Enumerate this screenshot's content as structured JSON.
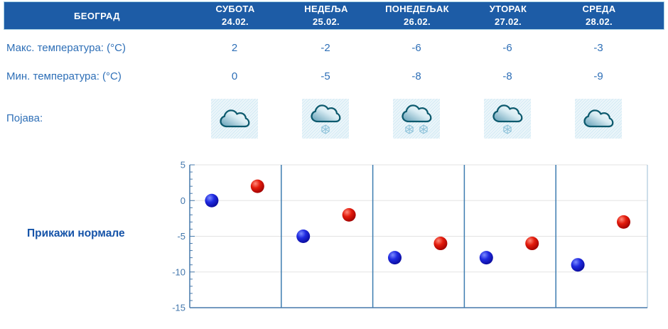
{
  "header": {
    "city": "БЕОГРАД",
    "days": [
      {
        "name": "СУБОТА",
        "date": "24.02."
      },
      {
        "name": "НЕДЕЉА",
        "date": "25.02."
      },
      {
        "name": "ПОНЕДЕЉАК",
        "date": "26.02."
      },
      {
        "name": "УТОРАК",
        "date": "27.02."
      },
      {
        "name": "СРЕДА",
        "date": "28.02."
      }
    ]
  },
  "rows": {
    "max": {
      "label": "Макс. температура: (°C)",
      "values": [
        "2",
        "-2",
        "-6",
        "-6",
        "-3"
      ]
    },
    "min": {
      "label": "Мин. температура: (°C)",
      "values": [
        "0",
        "-5",
        "-8",
        "-8",
        "-9"
      ]
    },
    "phenomena": {
      "label": "Појава:",
      "icons": [
        {
          "name": "cloudy-icon",
          "type": "cloudy",
          "snowflakes": 0
        },
        {
          "name": "cloud-light-snow-icon",
          "type": "snow",
          "snowflakes": 1
        },
        {
          "name": "cloud-snow-icon",
          "type": "snow",
          "snowflakes": 2
        },
        {
          "name": "cloud-light-snow-icon",
          "type": "snow",
          "snowflakes": 1
        },
        {
          "name": "cloudy-icon",
          "type": "cloudy",
          "snowflakes": 0
        }
      ]
    }
  },
  "actions": {
    "show_normals_label": "Прикажи нормале"
  },
  "chart_data": {
    "type": "scatter",
    "categories": [
      "24.02.",
      "25.02.",
      "26.02.",
      "27.02.",
      "28.02."
    ],
    "series": [
      {
        "name": "Мин. температура (°C)",
        "color": "#1a1acc",
        "values": [
          0,
          -5,
          -8,
          -8,
          -9
        ]
      },
      {
        "name": "Макс. температура (°C)",
        "color": "#cc1111",
        "values": [
          2,
          -2,
          -6,
          -6,
          -3
        ]
      }
    ],
    "ylim": [
      -15,
      5
    ],
    "yticks": [
      5,
      0,
      -5,
      -10,
      -15
    ],
    "minor_tick_step": 1,
    "grid": true,
    "legend": "none"
  },
  "colors": {
    "header_bg": "#1d5ca6",
    "header_text": "#ffffff",
    "label_text": "#2e6fb7",
    "link_text": "#1553a8",
    "axis": "#4679ab",
    "day_separator": "#3c7cb0",
    "gridline": "#e3e3e3",
    "icon_bg": "#e7f3f9",
    "cloud_outline": "#0d5a6e",
    "snowflake": "#8fc3da",
    "min_marker": "#1a1acc",
    "max_marker": "#cc1111"
  }
}
